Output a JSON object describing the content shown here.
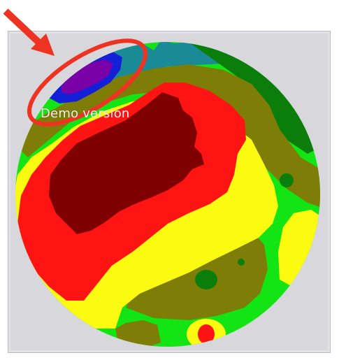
{
  "watermark": {
    "text": "Demo version"
  },
  "colors": {
    "panel_bg": "#d7d7dc",
    "frame": "#b9b9bf",
    "annotation_red": "#ee3322",
    "levels": [
      "#7a00a8",
      "#1420d8",
      "#1a8a96",
      "#0a7d0a",
      "#13e413",
      "#7d7d08",
      "#fbfb12",
      "#ff1414",
      "#7f0000"
    ]
  },
  "icons": {
    "annotation_arrow": "red-arrow-icon",
    "highlight_ring": "red-ellipse-icon"
  }
}
